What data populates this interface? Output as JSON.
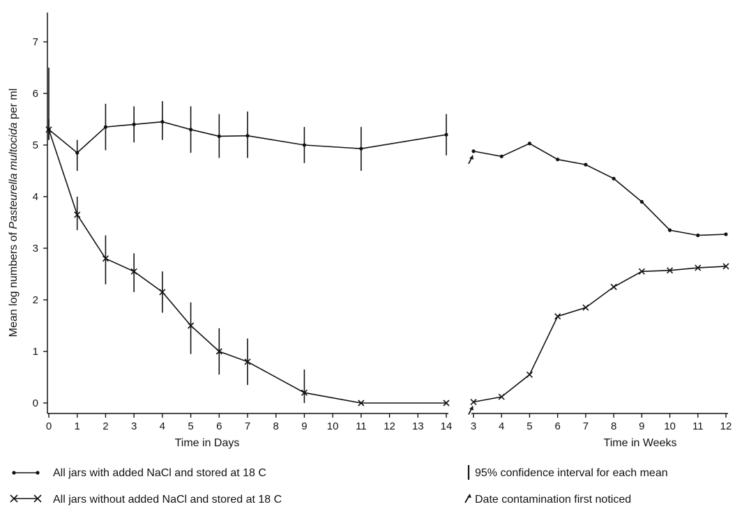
{
  "chart_data": [
    {
      "type": "line",
      "panel": "days",
      "xlabel": "Time in Days",
      "ylabel": "Mean log numbers of Pasteurella multocida per ml",
      "ylabel_plain": "Mean log numbers of ",
      "ylabel_italic": "Pasteurella multocida",
      "ylabel_tail": " per ml",
      "xlim": [
        0,
        14
      ],
      "ylim": [
        0,
        7
      ],
      "xticks": [
        0,
        1,
        2,
        3,
        4,
        5,
        6,
        7,
        8,
        9,
        10,
        11,
        12,
        13,
        14
      ],
      "yticks": [
        0,
        1,
        2,
        3,
        4,
        5,
        6,
        7
      ],
      "series": [
        {
          "name": "All jars with added NaCl and stored at 18 C",
          "marker": "dot",
          "x": [
            0,
            1,
            2,
            3,
            4,
            5,
            6,
            7,
            9,
            11,
            14
          ],
          "y": [
            5.3,
            4.85,
            5.35,
            5.4,
            5.45,
            5.3,
            5.17,
            5.18,
            5.0,
            4.93,
            5.2
          ],
          "ci": [
            [
              5.1,
              5.5
            ],
            [
              4.5,
              5.1
            ],
            [
              4.9,
              5.8
            ],
            [
              5.05,
              5.75
            ],
            [
              5.1,
              5.85
            ],
            [
              4.85,
              5.75
            ],
            [
              4.75,
              5.6
            ],
            [
              4.75,
              5.65
            ],
            [
              4.65,
              5.35
            ],
            [
              4.5,
              5.35
            ],
            [
              4.8,
              5.6
            ]
          ]
        },
        {
          "name": "All jars without added NaCl and stored at 18 C",
          "marker": "x",
          "x": [
            0,
            1,
            2,
            3,
            4,
            5,
            6,
            7,
            9,
            11,
            14
          ],
          "y": [
            5.3,
            3.65,
            2.8,
            2.55,
            2.15,
            1.5,
            1.0,
            0.8,
            0.2,
            0.0,
            0.0
          ],
          "ci": [
            [
              5.1,
              6.5
            ],
            [
              3.35,
              4.0
            ],
            [
              2.3,
              3.25
            ],
            [
              2.15,
              2.9
            ],
            [
              1.75,
              2.55
            ],
            [
              0.95,
              1.95
            ],
            [
              0.55,
              1.45
            ],
            [
              0.35,
              1.25
            ],
            [
              0.0,
              0.65
            ],
            null,
            null
          ]
        }
      ]
    },
    {
      "type": "line",
      "panel": "weeks",
      "xlabel": "Time in Weeks",
      "xlim": [
        3,
        12
      ],
      "ylim": [
        0,
        7
      ],
      "xticks": [
        3,
        4,
        5,
        6,
        7,
        8,
        9,
        10,
        11,
        12
      ],
      "series": [
        {
          "name": "All jars with added NaCl and stored at 18 C",
          "marker": "dot",
          "x": [
            3,
            4,
            5,
            6,
            7,
            8,
            9,
            10,
            11,
            12
          ],
          "y": [
            4.88,
            4.78,
            5.03,
            4.72,
            4.62,
            4.35,
            3.9,
            3.35,
            3.25,
            3.27
          ],
          "contamination_x": 3
        },
        {
          "name": "All jars without added NaCl and stored at 18 C",
          "marker": "x",
          "x": [
            3,
            4,
            5,
            6,
            7,
            8,
            9,
            10,
            11,
            12
          ],
          "y": [
            0.02,
            0.12,
            0.55,
            1.68,
            1.85,
            2.25,
            2.55,
            2.57,
            2.62,
            2.65
          ],
          "contamination_x": 3
        }
      ]
    }
  ],
  "legend": {
    "nacl": "All jars with added NaCl and stored at 18 C",
    "no_nacl": "All jars without added NaCl and stored at 18 C",
    "ci": "95% confidence interval for each mean",
    "contamination": "Date contamination first noticed"
  }
}
